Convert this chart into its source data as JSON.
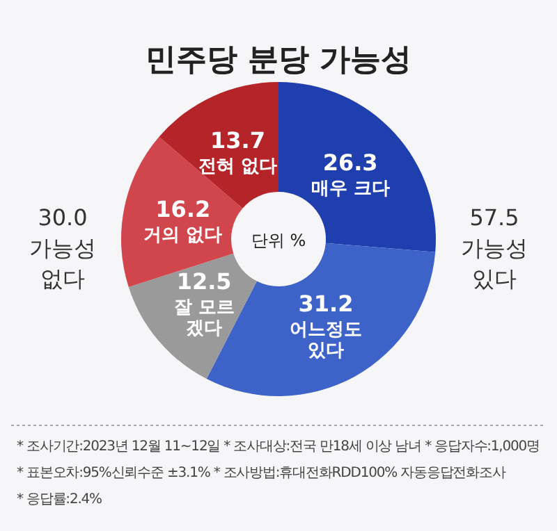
{
  "chart_data": {
    "type": "donut",
    "title": "민주당 분당 가능성",
    "categories": [
      "매우 크다",
      "어느정도\n있다",
      "잘 모르\n겠다",
      "거의 없다",
      "전혀 없다"
    ],
    "values": [
      26.3,
      31.2,
      12.5,
      16.2,
      13.7
    ],
    "colors": [
      "#1f3fae",
      "#3d63c9",
      "#9a9a9a",
      "#d0464c",
      "#b52429"
    ],
    "data_labels": true,
    "annotations": [
      "30.0\n가능성\n없다",
      "57.5\n가능성\n있다",
      "단위 %",
      "* 조사기간:2023년 12월 11~12일  * 조사대상:전국 만18세 이상 남녀  * 응답자수:1,000명",
      "* 표본오차:95%신뢰수준 ±3.1%  * 조사방법:휴대전화RDD100% 자동응답전화조사",
      "* 응답률:2.4%"
    ]
  }
}
